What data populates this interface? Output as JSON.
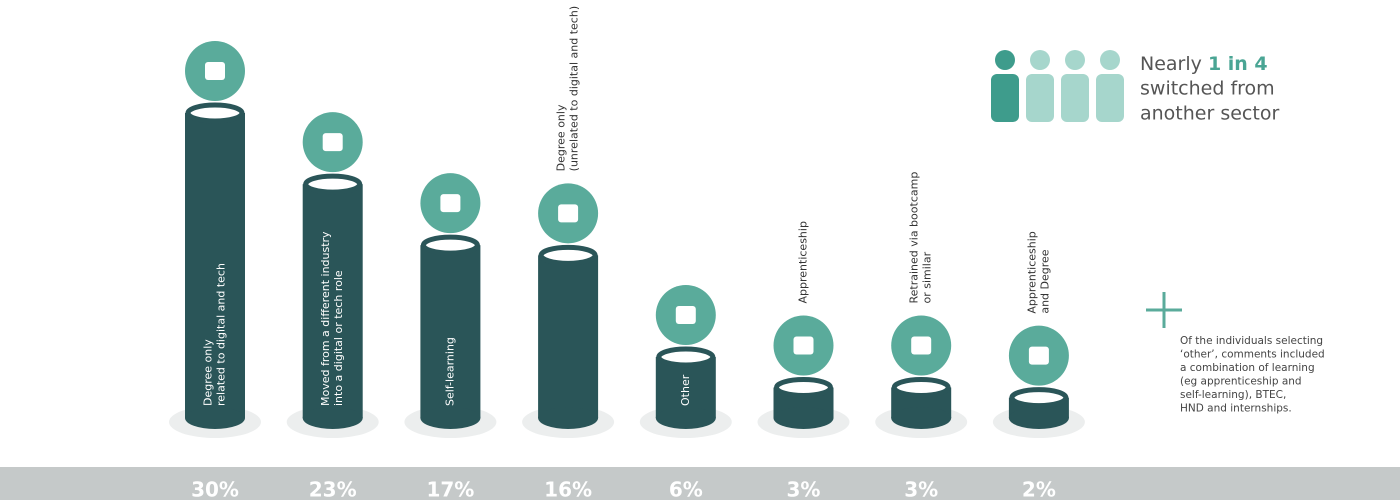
{
  "chart_data": {
    "type": "cylinder",
    "categories": [
      [
        "Degree only",
        "related to digital and tech"
      ],
      [
        "Moved from a different industry",
        "into a digital or tech role"
      ],
      [
        "Self-learning"
      ],
      [
        "Degree only",
        "(unrelated to digital and tech)"
      ],
      [
        "Other"
      ],
      [
        "Apprenticeship"
      ],
      [
        "Retrained via bootcamp",
        "or similar"
      ],
      [
        "Apprenticeship",
        "and Degree"
      ]
    ],
    "values": [
      30,
      23,
      17,
      16,
      6,
      3,
      3,
      2
    ],
    "value_labels": [
      "30%",
      "23%",
      "17%",
      "16%",
      "6%",
      "3%",
      "3%",
      "2%"
    ],
    "color": "#2a5558",
    "icon_color": "#5aab9b",
    "callout": {
      "prefix": "Nearly",
      "highlight": "1 in 4",
      "lines": [
        "switched from",
        "another sector"
      ]
    },
    "note": [
      "Of the individuals selecting",
      "‘other’, comments included",
      "a combination of learning",
      "(eg apprenticeship and",
      "self-learning), BTEC,",
      "HND and internships."
    ]
  }
}
